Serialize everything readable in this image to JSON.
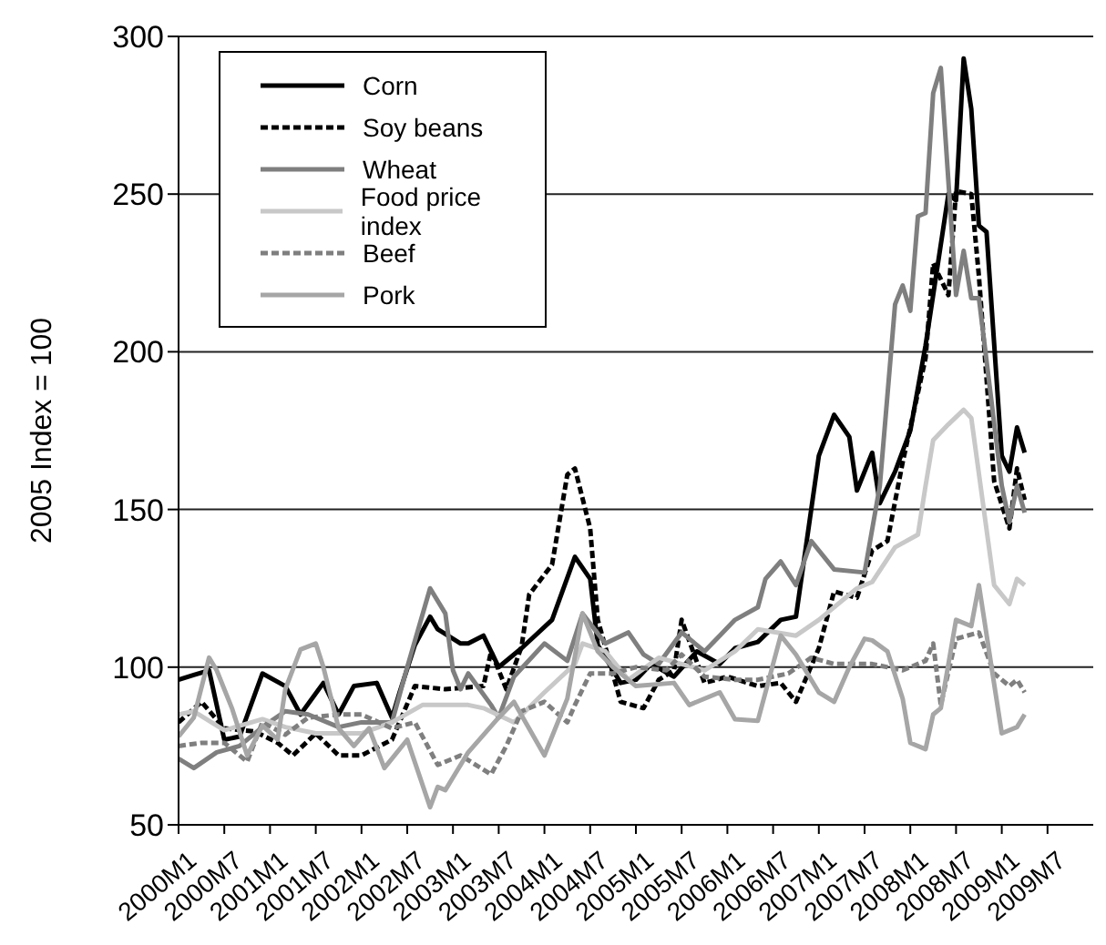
{
  "chart_data": {
    "type": "line",
    "ylabel": "2005 Index = 100",
    "xlim": [
      "2000-01",
      "2010-01"
    ],
    "xticks": [
      {
        "value": "2000-01",
        "label": "2000M1"
      },
      {
        "value": "2000-07",
        "label": "2000M7"
      },
      {
        "value": "2001-01",
        "label": "2001M1"
      },
      {
        "value": "2001-07",
        "label": "2001M7"
      },
      {
        "value": "2002-01",
        "label": "2002M1"
      },
      {
        "value": "2002-07",
        "label": "2002M7"
      },
      {
        "value": "2003-01",
        "label": "2003M1"
      },
      {
        "value": "2003-07",
        "label": "2003M7"
      },
      {
        "value": "2004-01",
        "label": "2004M1"
      },
      {
        "value": "2004-07",
        "label": "2004M7"
      },
      {
        "value": "2005-01",
        "label": "2005M1"
      },
      {
        "value": "2005-07",
        "label": "2005M7"
      },
      {
        "value": "2006-01",
        "label": "2006M1"
      },
      {
        "value": "2006-07",
        "label": "2006M7"
      },
      {
        "value": "2007-01",
        "label": "2007M1"
      },
      {
        "value": "2007-07",
        "label": "2007M7"
      },
      {
        "value": "2008-01",
        "label": "2008M1"
      },
      {
        "value": "2008-07",
        "label": "2008M7"
      },
      {
        "value": "2009-01",
        "label": "2009M1"
      },
      {
        "value": "2009-07",
        "label": "2009M7"
      }
    ],
    "ylim": [
      50,
      300
    ],
    "yticks": [
      50,
      100,
      150,
      200,
      250,
      300
    ],
    "grid": "y",
    "legend": "top left",
    "marker": "none",
    "series": [
      {
        "name": "Corn",
        "color": "#000000",
        "line_style": "solid",
        "x": [
          "2000-01",
          "2000-03",
          "2000-05",
          "2000-07",
          "2000-09",
          "2000-12",
          "2001-03",
          "2001-05",
          "2001-08",
          "2001-10",
          "2001-12",
          "2002-03",
          "2002-05",
          "2002-06",
          "2002-08",
          "2002-10",
          "2002-11",
          "2003-02",
          "2003-03",
          "2003-05",
          "2003-07",
          "2003-10",
          "2004-02",
          "2004-05",
          "2004-07",
          "2004-08",
          "2004-11",
          "2005-01",
          "2005-03",
          "2005-06",
          "2005-09",
          "2005-12",
          "2006-02",
          "2006-05",
          "2006-08",
          "2006-10",
          "2007-01",
          "2007-03",
          "2007-05",
          "2007-06",
          "2007-08",
          "2007-09",
          "2007-11",
          "2008-01",
          "2008-03",
          "2008-06",
          "2008-07",
          "2008-08",
          "2008-09",
          "2008-10",
          "2008-11",
          "2009-01",
          "2009-02",
          "2009-03",
          "2009-04"
        ],
        "values": [
          96,
          97.5,
          99,
          77,
          78,
          98,
          94,
          85,
          95,
          85,
          94,
          95,
          84,
          92,
          107,
          116,
          112,
          107.5,
          107.5,
          110,
          100,
          106,
          115,
          135,
          128,
          107,
          95,
          96,
          101,
          97,
          105,
          101,
          106,
          108,
          115,
          116,
          167,
          180,
          173,
          156,
          168,
          152,
          162,
          175,
          202,
          250,
          248,
          293,
          277,
          240,
          238,
          167,
          162,
          176,
          168
        ]
      },
      {
        "name": "Soy beans",
        "color": "#000000",
        "line_style": "dashed",
        "x": [
          "2000-01",
          "2000-04",
          "2000-07",
          "2000-11",
          "2001-02",
          "2001-04",
          "2001-07",
          "2001-10",
          "2002-01",
          "2002-05",
          "2002-08",
          "2002-12",
          "2003-05",
          "2003-06",
          "2003-08",
          "2003-10",
          "2003-11",
          "2004-02",
          "2004-04",
          "2004-05",
          "2004-07",
          "2004-08",
          "2004-11",
          "2005-02",
          "2005-04",
          "2005-06",
          "2005-07",
          "2005-10",
          "2006-01",
          "2006-05",
          "2006-08",
          "2006-10",
          "2007-01",
          "2007-03",
          "2007-06",
          "2007-08",
          "2007-10",
          "2007-12",
          "2008-03",
          "2008-04",
          "2008-06",
          "2008-07",
          "2008-09",
          "2008-10",
          "2008-12",
          "2009-02",
          "2009-03",
          "2009-04"
        ],
        "values": [
          82.5,
          89,
          80.6,
          79.6,
          76,
          72,
          79,
          72,
          72,
          77,
          94,
          93,
          94,
          105,
          93,
          106.5,
          123,
          132.5,
          161,
          163,
          144,
          115,
          89,
          87,
          96,
          99,
          115,
          95,
          97,
          94,
          95,
          89,
          106,
          124,
          122,
          137,
          140,
          165,
          198,
          228,
          218,
          251,
          250,
          224,
          159,
          144,
          163,
          153
        ]
      },
      {
        "name": "Wheat",
        "color": "#7f7f7f",
        "line_style": "solid",
        "x": [
          "2000-01",
          "2000-03",
          "2000-06",
          "2000-09",
          "2000-12",
          "2001-03",
          "2001-06",
          "2001-10",
          "2002-01",
          "2002-05",
          "2002-07",
          "2002-10",
          "2002-12",
          "2003-01",
          "2003-02",
          "2003-03",
          "2003-06",
          "2003-07",
          "2003-09",
          "2004-01",
          "2004-04",
          "2004-06",
          "2004-09",
          "2004-12",
          "2005-02",
          "2005-04",
          "2005-07",
          "2005-10",
          "2005-12",
          "2006-02",
          "2006-05",
          "2006-06",
          "2006-08",
          "2006-10",
          "2006-12",
          "2007-03",
          "2007-07",
          "2007-09",
          "2007-11",
          "2007-12",
          "2008-01",
          "2008-02",
          "2008-03",
          "2008-04",
          "2008-05",
          "2008-07",
          "2008-08",
          "2008-09",
          "2008-10",
          "2009-01",
          "2009-02",
          "2009-03",
          "2009-04"
        ],
        "values": [
          71,
          68,
          73,
          75,
          81,
          86,
          85,
          81,
          82.5,
          82.5,
          100,
          125,
          117,
          99,
          93,
          98,
          88,
          84,
          97,
          107.5,
          102,
          117,
          107.5,
          111,
          104,
          101,
          111,
          105,
          110,
          115,
          119,
          128,
          133.5,
          126,
          140,
          131,
          130,
          157.5,
          215,
          221,
          213,
          243,
          244,
          282,
          290,
          218,
          232,
          217,
          217,
          157.5,
          146,
          157.5,
          149
        ]
      },
      {
        "name": "Food price index",
        "color": "#c8c8c8",
        "line_style": "solid",
        "x": [
          "2000-01",
          "2000-03",
          "2000-07",
          "2000-12",
          "2001-03",
          "2001-07",
          "2002-01",
          "2002-05",
          "2002-09",
          "2003-03",
          "2003-05",
          "2003-09",
          "2004-01",
          "2004-05",
          "2004-06",
          "2004-09",
          "2004-12",
          "2005-04",
          "2005-07",
          "2005-10",
          "2006-02",
          "2006-05",
          "2006-10",
          "2007-01",
          "2007-06",
          "2007-08",
          "2007-11",
          "2008-02",
          "2008-03",
          "2008-04",
          "2008-06",
          "2008-08",
          "2008-09",
          "2008-12",
          "2009-02",
          "2009-03",
          "2009-04"
        ],
        "values": [
          85,
          86,
          80,
          83.5,
          81,
          79,
          79,
          82.5,
          88,
          88,
          87,
          82.5,
          92,
          101,
          107.5,
          105,
          96,
          103,
          101,
          99,
          105,
          112,
          110,
          115,
          125,
          127,
          138,
          142,
          157.5,
          172,
          177,
          181.6,
          179,
          126,
          120,
          128,
          126
        ]
      },
      {
        "name": "Beef",
        "color": "#7f7f7f",
        "line_style": "dashed",
        "x": [
          "2000-01",
          "2000-04",
          "2000-07",
          "2000-10",
          "2000-12",
          "2001-03",
          "2001-06",
          "2001-10",
          "2002-01",
          "2002-05",
          "2002-08",
          "2002-11",
          "2003-02",
          "2003-06",
          "2003-08",
          "2003-10",
          "2004-01",
          "2004-04",
          "2004-05",
          "2004-07",
          "2004-10",
          "2005-01",
          "2005-05",
          "2005-07",
          "2005-10",
          "2006-02",
          "2006-05",
          "2006-09",
          "2006-12",
          "2007-03",
          "2007-08",
          "2007-12",
          "2008-03",
          "2008-04",
          "2008-05",
          "2008-07",
          "2008-10",
          "2008-12",
          "2009-02",
          "2009-03",
          "2009-04"
        ],
        "values": [
          75,
          76,
          76,
          70,
          82.5,
          78.6,
          84,
          85,
          85,
          80.6,
          82.5,
          69,
          72,
          66,
          75,
          86,
          89,
          82.5,
          88,
          98,
          98,
          100,
          99,
          104,
          97,
          96,
          96,
          98,
          103,
          101,
          101,
          99,
          102,
          107.5,
          88,
          109,
          111,
          98,
          94,
          96,
          92
        ]
      },
      {
        "name": "Pork",
        "color": "#a6a6a6",
        "line_style": "solid",
        "x": [
          "2000-01",
          "2000-03",
          "2000-05",
          "2000-06",
          "2000-08",
          "2000-10",
          "2000-12",
          "2001-02",
          "2001-03",
          "2001-05",
          "2001-07",
          "2001-08",
          "2001-10",
          "2001-12",
          "2002-02",
          "2002-04",
          "2002-07",
          "2002-10",
          "2002-11",
          "2002-12",
          "2003-01",
          "2003-03",
          "2003-07",
          "2003-09",
          "2004-01",
          "2004-04",
          "2004-06",
          "2004-08",
          "2004-10",
          "2005-01",
          "2005-06",
          "2005-08",
          "2005-12",
          "2006-02",
          "2006-05",
          "2006-08",
          "2006-10",
          "2007-01",
          "2007-03",
          "2007-05",
          "2007-07",
          "2007-08",
          "2007-10",
          "2007-12",
          "2008-01",
          "2008-03",
          "2008-04",
          "2008-05",
          "2008-07",
          "2008-09",
          "2008-10",
          "2009-01",
          "2009-03",
          "2009-04"
        ],
        "values": [
          78,
          84,
          103,
          99,
          87,
          72,
          81.5,
          77,
          93,
          105.6,
          107.5,
          100,
          80.6,
          75,
          80.6,
          68,
          77,
          55.6,
          62,
          61,
          65,
          73,
          84,
          89,
          72,
          90,
          117,
          105,
          100,
          94,
          95,
          88,
          92,
          83.5,
          83,
          110,
          104,
          92,
          89,
          100,
          109,
          108.5,
          105,
          90,
          76,
          74,
          85,
          87,
          115,
          113,
          126,
          79,
          81,
          85
        ]
      }
    ]
  }
}
